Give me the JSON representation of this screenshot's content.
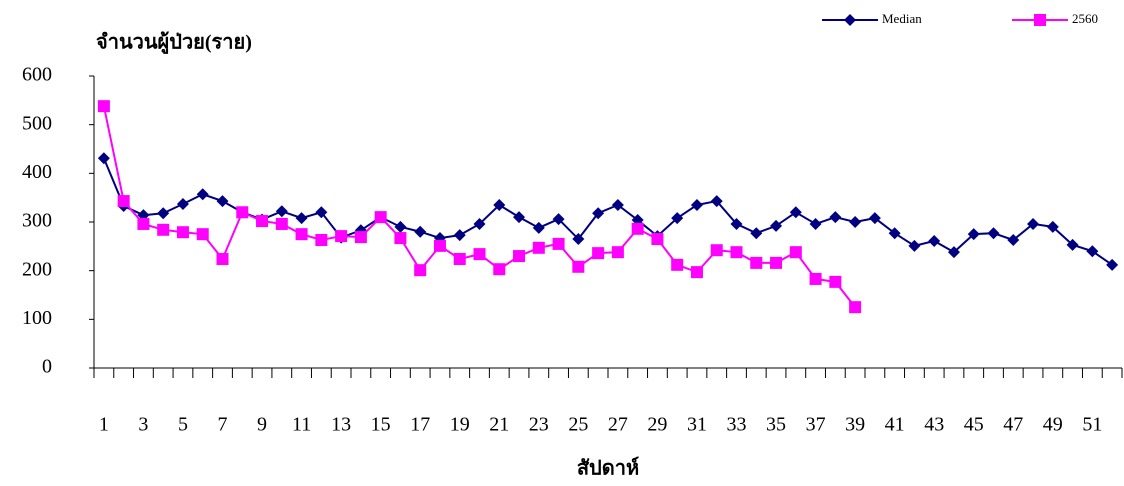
{
  "chart_data": {
    "type": "line",
    "y_label": "จำนวนผู้ป่วย(ราย)",
    "x_label": "สัปดาห์",
    "categories": [
      "1",
      null,
      "3",
      null,
      "5",
      null,
      "7",
      null,
      "9",
      null,
      "11",
      null,
      "13",
      null,
      "15",
      null,
      "17",
      null,
      "19",
      null,
      "21",
      null,
      "23",
      null,
      "25",
      null,
      "27",
      null,
      "29",
      null,
      "31",
      null,
      "33",
      null,
      "35",
      null,
      "37",
      null,
      "39",
      null,
      "41",
      null,
      "43",
      null,
      "45",
      null,
      "47",
      null,
      "49",
      null,
      "51",
      null
    ],
    "series": [
      {
        "name": "Median",
        "color": "#000080",
        "marker": "diamond",
        "values": [
          431,
          333,
          314,
          318,
          337,
          357,
          343,
          320,
          305,
          322,
          308,
          320,
          268,
          283,
          310,
          290,
          280,
          267,
          273,
          296,
          335,
          310,
          288,
          306,
          265,
          318,
          335,
          304,
          271,
          308,
          335,
          343,
          296,
          277,
          292,
          320,
          296,
          310,
          300,
          308,
          277,
          251,
          261,
          238,
          275,
          277,
          263,
          296,
          290,
          253,
          240,
          212
        ]
      },
      {
        "name": "2560",
        "color": "#FF00FF",
        "marker": "square",
        "values": [
          538,
          343,
          296,
          284,
          279,
          275,
          224,
          320,
          302,
          296,
          275,
          263,
          271,
          269,
          310,
          267,
          201,
          251,
          224,
          234,
          203,
          230,
          247,
          255,
          208,
          236,
          238,
          286,
          265,
          212,
          197,
          242,
          238,
          216,
          216,
          238,
          183,
          177,
          125,
          null,
          null,
          null,
          null,
          null,
          null,
          null,
          null,
          null,
          null,
          null,
          null,
          null
        ]
      }
    ],
    "ylim": [
      0,
      600
    ],
    "yticks": [
      0,
      100,
      200,
      300,
      400,
      500,
      600
    ],
    "grid": false,
    "legend": "top-right"
  }
}
